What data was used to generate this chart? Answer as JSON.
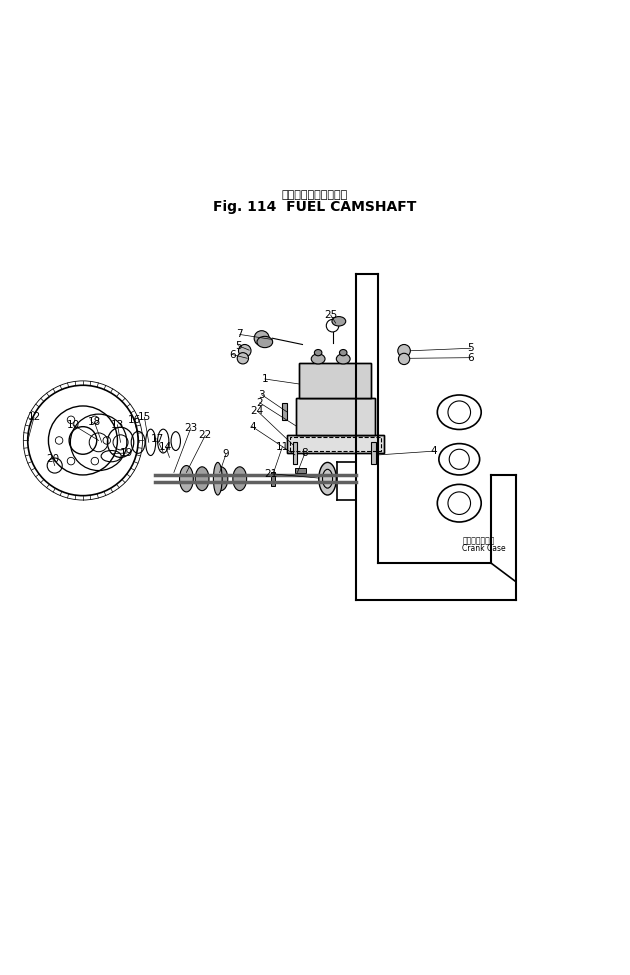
{
  "title_japanese": "フェールカムシャフト",
  "title_english": "Fig. 114  FUEL CAMSHAFT",
  "bg_color": "#ffffff",
  "line_color": "#000000",
  "fig_width": 6.3,
  "fig_height": 9.75,
  "crank_case_japanese": "クランクケース",
  "crank_case_english": "Crank Case"
}
